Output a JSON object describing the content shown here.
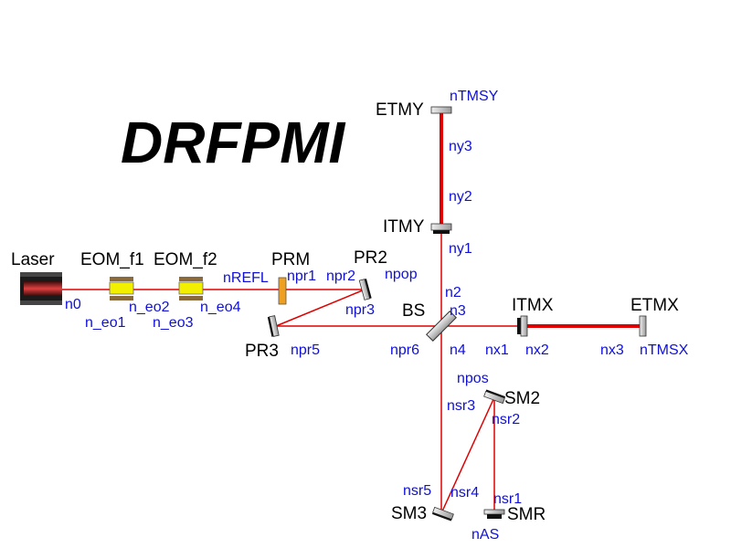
{
  "title": "DRFPMI",
  "colors": {
    "beam": "#e00000",
    "node_label": "#1010d8",
    "component_label": "#000000",
    "mirror_fill": "#c8c8c8",
    "mirror_back": "#111111",
    "prm_fill": "#f0a020",
    "eom_crystal": "#f2f000",
    "eom_electrode": "#8a6a3a",
    "laser_body": "#222222",
    "laser_core": "#c0202a"
  },
  "components": {
    "laser": "Laser",
    "eom_f1": "EOM_f1",
    "eom_f2": "EOM_f2",
    "prm": "PRM",
    "pr2": "PR2",
    "pr3": "PR3",
    "bs": "BS",
    "itmx": "ITMX",
    "etmx": "ETMX",
    "itmy": "ITMY",
    "etmy": "ETMY",
    "sm2": "SM2",
    "sm3": "SM3",
    "smr": "SMR"
  },
  "nodes": {
    "n0": "n0",
    "n_eo1": "n_eo1",
    "n_eo2": "n_eo2",
    "n_eo3": "n_eo3",
    "n_eo4": "n_eo4",
    "nREFL": "nREFL",
    "npr1": "npr1",
    "npr2": "npr2",
    "npop": "npop",
    "npr3": "npr3",
    "npr5": "npr5",
    "npr6": "npr6",
    "n2": "n2",
    "n3": "n3",
    "n4": "n4",
    "nx1": "nx1",
    "nx2": "nx2",
    "nx3": "nx3",
    "nTMSX": "nTMSX",
    "ny1": "ny1",
    "ny2": "ny2",
    "ny3": "ny3",
    "nTMSY": "nTMSY",
    "npos": "npos",
    "nsr1": "nsr1",
    "nsr2": "nsr2",
    "nsr3": "nsr3",
    "nsr4": "nsr4",
    "nsr5": "nsr5",
    "nAS": "nAS"
  }
}
